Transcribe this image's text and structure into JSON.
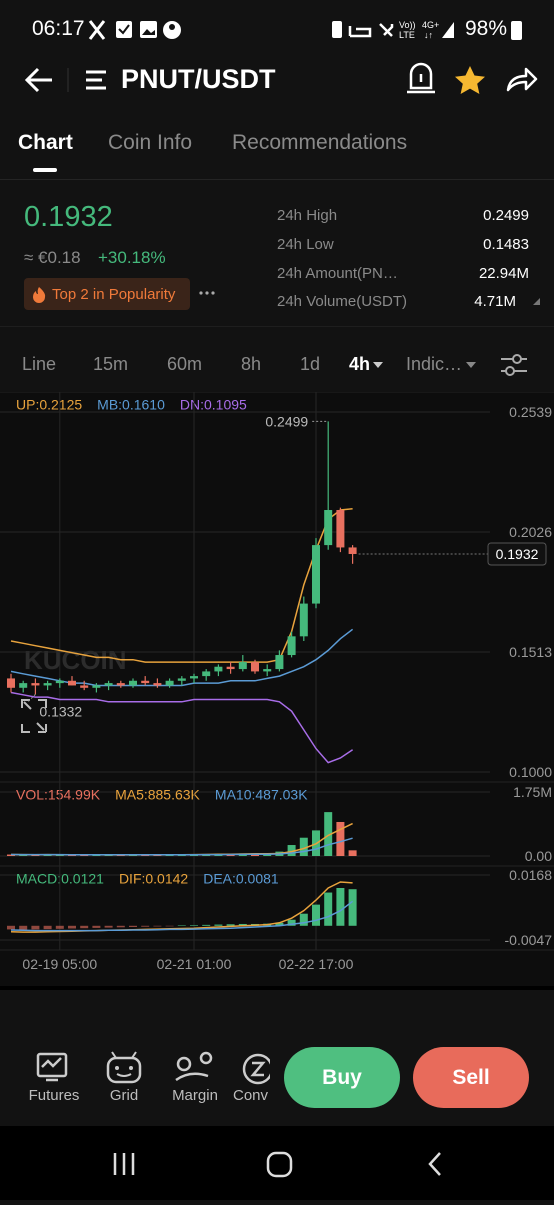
{
  "status_bar": {
    "time": "06:17",
    "battery": "98%"
  },
  "header": {
    "pair": "PNUT/USDT"
  },
  "tabs": [
    "Chart",
    "Coin Info",
    "Recommendations"
  ],
  "ticker": {
    "price": "0.1932",
    "fiat": "≈ €0.18",
    "change": "+30.18%",
    "badge": "Top 2 in Popularity",
    "stats": [
      {
        "label": "24h High",
        "value": "0.2499"
      },
      {
        "label": "24h Low",
        "value": "0.1483"
      },
      {
        "label": "24h Amount(PN…",
        "value": "22.94M"
      },
      {
        "label": "24h Volume(USDT)",
        "value": "4.71M"
      }
    ]
  },
  "intervals": [
    "Line",
    "15m",
    "60m",
    "8h",
    "1d",
    "4h",
    "Indic…"
  ],
  "chart_data": {
    "type": "candlestick",
    "watermark": "KUCOIN",
    "up_color": "#45b97c",
    "down_color": "#e8705f",
    "categories": [
      null,
      null,
      null,
      null,
      "02-19 05:00",
      null,
      null,
      null,
      null,
      null,
      null,
      null,
      null,
      null,
      null,
      "02-21 01:00",
      null,
      null,
      null,
      null,
      null,
      null,
      null,
      null,
      null,
      "02-22 17:00",
      null,
      null,
      null
    ],
    "open": [
      0.14,
      0.136,
      0.138,
      0.137,
      0.138,
      0.139,
      0.137,
      0.136,
      0.137,
      0.138,
      0.137,
      0.139,
      0.138,
      0.137,
      0.139,
      0.14,
      0.141,
      0.143,
      0.145,
      0.144,
      0.147,
      0.143,
      0.144,
      0.15,
      0.158,
      0.172,
      0.197,
      0.212,
      0.196
    ],
    "high": [
      0.142,
      0.139,
      0.14,
      0.139,
      0.14,
      0.141,
      0.139,
      0.138,
      0.139,
      0.139,
      0.14,
      0.141,
      0.14,
      0.14,
      0.141,
      0.142,
      0.144,
      0.146,
      0.147,
      0.15,
      0.148,
      0.146,
      0.152,
      0.16,
      0.175,
      0.2,
      0.2499,
      0.213,
      0.197
    ],
    "low": [
      0.134,
      0.134,
      0.1332,
      0.135,
      0.136,
      0.137,
      0.135,
      0.134,
      0.135,
      0.136,
      0.136,
      0.137,
      0.136,
      0.136,
      0.137,
      0.138,
      0.139,
      0.141,
      0.142,
      0.143,
      0.142,
      0.141,
      0.143,
      0.149,
      0.156,
      0.17,
      0.195,
      0.194,
      0.189
    ],
    "close": [
      0.136,
      0.138,
      0.137,
      0.138,
      0.139,
      0.137,
      0.136,
      0.137,
      0.138,
      0.137,
      0.139,
      0.138,
      0.137,
      0.139,
      0.14,
      0.141,
      0.143,
      0.145,
      0.144,
      0.147,
      0.143,
      0.144,
      0.15,
      0.158,
      0.172,
      0.197,
      0.212,
      0.196,
      0.1932
    ],
    "series": [
      {
        "name": "UP:0.2125",
        "color": "#e8a33d",
        "values": [
          0.156,
          0.155,
          0.154,
          0.153,
          0.152,
          0.151,
          0.15,
          0.149,
          0.149,
          0.148,
          0.148,
          0.147,
          0.147,
          0.147,
          0.147,
          0.147,
          0.147,
          0.147,
          0.147,
          0.147,
          0.147,
          0.147,
          0.148,
          0.16,
          0.18,
          0.195,
          0.208,
          0.212,
          0.2125
        ]
      },
      {
        "name": "MB:0.1610",
        "color": "#5b9bd5",
        "values": [
          0.143,
          0.142,
          0.141,
          0.14,
          0.139,
          0.138,
          0.138,
          0.137,
          0.137,
          0.137,
          0.137,
          0.137,
          0.137,
          0.137,
          0.137,
          0.138,
          0.138,
          0.138,
          0.139,
          0.139,
          0.139,
          0.14,
          0.141,
          0.143,
          0.145,
          0.148,
          0.152,
          0.157,
          0.161
        ]
      },
      {
        "name": "DN:0.1095",
        "color": "#a86de8",
        "values": [
          0.134,
          0.133,
          0.132,
          0.132,
          0.131,
          0.131,
          0.131,
          0.131,
          0.13,
          0.13,
          0.13,
          0.13,
          0.13,
          0.13,
          0.13,
          0.131,
          0.131,
          0.131,
          0.131,
          0.131,
          0.131,
          0.131,
          0.13,
          0.126,
          0.118,
          0.11,
          0.104,
          0.106,
          0.1095
        ]
      }
    ],
    "ylim": [
      0.1,
      0.2539
    ],
    "yticks": [
      0.2539,
      0.2026,
      0.1513,
      {
        "value": 0.1,
        "label": "0.1000"
      }
    ],
    "high_marker": 0.2499,
    "low_marker": 0.1332,
    "last_price": 0.1932,
    "volume": {
      "series": [
        {
          "name": "VOL:154.99K",
          "color": "#e8705f",
          "values": [
            40000,
            35000,
            30000,
            45000,
            30000,
            25000,
            30000,
            35000,
            30000,
            25000,
            30000,
            40000,
            30000,
            35000,
            40000,
            45000,
            50000,
            60000,
            55000,
            70000,
            60000,
            50000,
            120000,
            300000,
            500000,
            700000,
            1200000,
            930000,
            154990
          ]
        },
        {
          "name": "MA5:885.63K",
          "color": "#e8a33d",
          "values": [
            40000,
            38000,
            36000,
            37000,
            36000,
            33000,
            33000,
            33000,
            31000,
            31000,
            30000,
            32000,
            31000,
            32000,
            35000,
            38000,
            40000,
            46000,
            50000,
            56000,
            59000,
            59000,
            67000,
            120000,
            206000,
            334000,
            564000,
            726000,
            885630
          ]
        },
        {
          "name": "MA10:487.03K",
          "color": "#5b9bd5",
          "values": [
            40000,
            39000,
            38000,
            38000,
            37000,
            36000,
            35000,
            35000,
            35000,
            34000,
            33000,
            32000,
            32000,
            33000,
            33000,
            35000,
            37000,
            39000,
            41000,
            44000,
            47000,
            49000,
            56000,
            81000,
            124000,
            189000,
            305000,
            392000,
            487030
          ]
        }
      ],
      "ylim": [
        0,
        1750000
      ],
      "yticks": [
        {
          "value": 1750000,
          "label": "1.75M"
        },
        {
          "value": 0,
          "label": "0.00"
        }
      ]
    },
    "macd": {
      "series": [
        {
          "name": "MACD:0.0121",
          "color": "#45b97c",
          "values": [
            -0.0012,
            -0.0013,
            -0.0012,
            -0.0011,
            -0.001,
            -0.0009,
            -0.0008,
            -0.0007,
            -0.0006,
            -0.0005,
            -0.0004,
            -0.0003,
            -0.0002,
            -0.0001,
            0.0001,
            0.0002,
            0.0003,
            0.0004,
            0.0005,
            0.0006,
            0.0006,
            0.0007,
            0.001,
            0.002,
            0.004,
            0.007,
            0.011,
            0.0125,
            0.0121
          ]
        },
        {
          "name": "DIF:0.0142",
          "color": "#e8a33d",
          "values": [
            -0.002,
            -0.0021,
            -0.0021,
            -0.002,
            -0.0019,
            -0.0018,
            -0.0017,
            -0.0016,
            -0.0015,
            -0.0014,
            -0.0013,
            -0.0012,
            -0.0011,
            -0.001,
            -0.0009,
            -0.0008,
            -0.0006,
            -0.0004,
            -0.0002,
            0.0,
            0.0002,
            0.0004,
            0.001,
            0.0025,
            0.005,
            0.0085,
            0.0125,
            0.0145,
            0.0142
          ]
        },
        {
          "name": "DEA:0.0081",
          "color": "#5b9bd5",
          "values": [
            -0.0014,
            -0.0015,
            -0.0016,
            -0.0016,
            -0.0016,
            -0.0016,
            -0.0016,
            -0.0016,
            -0.0015,
            -0.0015,
            -0.0014,
            -0.0014,
            -0.0013,
            -0.0012,
            -0.0012,
            -0.0011,
            -0.001,
            -0.0009,
            -0.0008,
            -0.0006,
            -0.0004,
            -0.0002,
            0.0,
            0.0005,
            0.001,
            0.0018,
            0.003,
            0.005,
            0.0081
          ]
        }
      ],
      "ylim": [
        -0.0047,
        0.0168
      ],
      "yticks": [
        0.0168,
        -0.0047
      ]
    }
  },
  "bottom_nav": [
    "Futures",
    "Grid",
    "Margin",
    "Conv"
  ],
  "buttons": {
    "buy": "Buy",
    "sell": "Sell"
  }
}
